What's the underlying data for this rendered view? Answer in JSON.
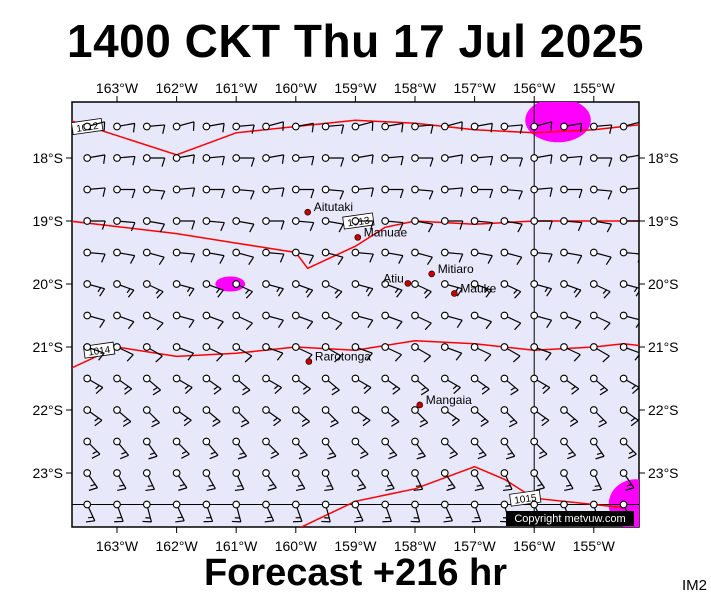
{
  "title": "1400 CKT Thu 17 Jul 2025",
  "forecast": "Forecast +216 hr",
  "product_code": "IM2",
  "copyright": "Copyright metvuw.com",
  "colors": {
    "ocean": "#e8e8fb",
    "isobar": "#ff0000",
    "precip": "#ff00ff",
    "wind": "#000000",
    "place_dot": "#cc0000"
  },
  "lon_labels": [
    "163°W",
    "162°W",
    "161°W",
    "160°W",
    "159°W",
    "158°W",
    "157°W",
    "156°W",
    "155°W"
  ],
  "lat_labels": [
    "18°S",
    "19°S",
    "20°S",
    "21°S",
    "22°S",
    "23°S"
  ],
  "places": [
    {
      "name": "Aitutaki",
      "lon": -159.8,
      "lat": -18.86
    },
    {
      "name": "Manuae",
      "lon": -158.96,
      "lat": -19.26
    },
    {
      "name": "Atiu",
      "lon": -158.12,
      "lat": -19.99
    },
    {
      "name": "Mitiaro",
      "lon": -157.72,
      "lat": -19.84
    },
    {
      "name": "Mauke",
      "lon": -157.34,
      "lat": -20.15
    },
    {
      "name": "Rarotonga",
      "lon": -159.78,
      "lat": -21.23
    },
    {
      "name": "Mangaia",
      "lon": -157.92,
      "lat": -21.92
    }
  ],
  "isobars": [
    {
      "label": "1012",
      "label_lon": -163.5,
      "label_lat": -17.5,
      "path": [
        [
          -163.8,
          -17.4
        ],
        [
          -162.0,
          -17.95
        ],
        [
          -161.0,
          -17.6
        ],
        [
          -160.0,
          -17.5
        ],
        [
          -159.0,
          -17.4
        ],
        [
          -158.0,
          -17.45
        ],
        [
          -157.0,
          -17.55
        ],
        [
          -156.0,
          -17.6
        ],
        [
          -155.0,
          -17.55
        ],
        [
          -154.0,
          -17.45
        ]
      ]
    },
    {
      "label": "1013",
      "label_lon": -158.95,
      "label_lat": -19.0,
      "path": [
        [
          -163.8,
          -19.0
        ],
        [
          -162.0,
          -19.2
        ],
        [
          -161.0,
          -19.35
        ],
        [
          -160.0,
          -19.5
        ],
        [
          -159.8,
          -19.75
        ],
        [
          -159.0,
          -19.4
        ],
        [
          -158.5,
          -19.1
        ],
        [
          -158.0,
          -19.0
        ],
        [
          -157.0,
          -19.05
        ],
        [
          -156.0,
          -19.0
        ],
        [
          -155.0,
          -19.0
        ],
        [
          -154.0,
          -19.0
        ]
      ]
    },
    {
      "label": "1014",
      "label_lon": -163.3,
      "label_lat": -21.05,
      "path": [
        [
          -163.8,
          -21.35
        ],
        [
          -163.0,
          -21.0
        ],
        [
          -162.0,
          -21.15
        ],
        [
          -161.0,
          -21.1
        ],
        [
          -160.0,
          -21.0
        ],
        [
          -159.0,
          -21.05
        ],
        [
          -158.0,
          -20.9
        ],
        [
          -157.0,
          -20.95
        ],
        [
          -156.0,
          -21.05
        ],
        [
          -155.0,
          -21.0
        ],
        [
          -154.5,
          -20.95
        ],
        [
          -154.0,
          -21.0
        ]
      ]
    },
    {
      "label": "1015",
      "label_lon": -156.15,
      "label_lat": -23.4,
      "path": [
        [
          -160.1,
          -24.3
        ],
        [
          -160.0,
          -23.9
        ],
        [
          -159.0,
          -23.45
        ],
        [
          -158.0,
          -23.25
        ],
        [
          -157.0,
          -22.9
        ],
        [
          -156.5,
          -23.1
        ],
        [
          -156.0,
          -23.4
        ],
        [
          -155.0,
          -23.5
        ],
        [
          -154.5,
          -23.55
        ]
      ]
    }
  ],
  "precip_areas": [
    {
      "lon": -155.6,
      "lat": -17.4,
      "rx": 0.55,
      "ry": 0.35
    },
    {
      "lon": -161.1,
      "lat": -20.0,
      "rx": 0.25,
      "ry": 0.12
    },
    {
      "lon": -154.3,
      "lat": -23.5,
      "rx": 0.45,
      "ry": 0.4
    }
  ],
  "winds": {
    "lon_start": -163.5,
    "lon_step": 0.5,
    "lon_count": 19,
    "lat_start": -17.5,
    "lat_step": -0.5,
    "lat_count": 13,
    "rows": [
      {
        "dir": 80,
        "kt": 10
      },
      {
        "dir": 85,
        "kt": 10
      },
      {
        "dir": 90,
        "kt": 10
      },
      {
        "dir": 95,
        "kt": 10
      },
      {
        "dir": 100,
        "kt": 10
      },
      {
        "dir": 110,
        "kt": 15
      },
      {
        "dir": 110,
        "kt": 10
      },
      {
        "dir": 115,
        "kt": 10
      },
      {
        "dir": 125,
        "kt": 15
      },
      {
        "dir": 130,
        "kt": 15
      },
      {
        "dir": 140,
        "kt": 15
      },
      {
        "dir": 150,
        "kt": 15
      },
      {
        "dir": 160,
        "kt": 15
      }
    ]
  }
}
